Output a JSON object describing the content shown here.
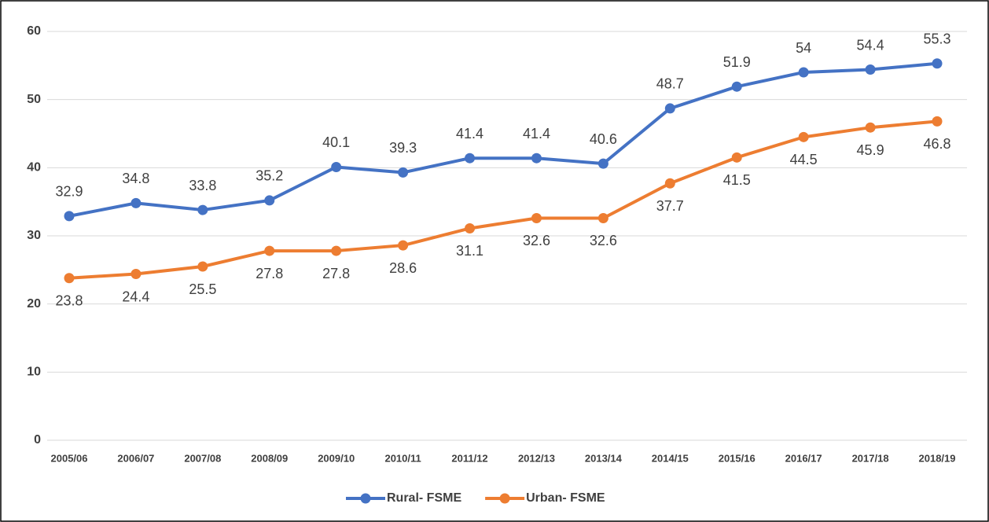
{
  "chart_data": {
    "type": "line",
    "categories": [
      "2005/06",
      "2006/07",
      "2007/08",
      "2008/09",
      "2009/10",
      "2010/11",
      "2011/12",
      "2012/13",
      "2013/14",
      "2014/15",
      "2015/16",
      "2016/17",
      "2017/18",
      "2018/19"
    ],
    "series": [
      {
        "name": "Rural- FSME",
        "color": "#4472c4",
        "values": [
          32.9,
          34.8,
          33.8,
          35.2,
          40.1,
          39.3,
          41.4,
          41.4,
          40.6,
          48.7,
          51.9,
          54,
          54.4,
          55.3
        ]
      },
      {
        "name": "Urban- FSME",
        "color": "#ed7d31",
        "values": [
          23.8,
          24.4,
          25.5,
          27.8,
          27.8,
          28.6,
          31.1,
          32.6,
          32.6,
          37.7,
          41.5,
          44.5,
          45.9,
          46.8
        ]
      }
    ],
    "ylim": [
      0,
      60
    ],
    "yticks": [
      0,
      10,
      20,
      30,
      40,
      50,
      60
    ],
    "grid": true,
    "legend": "bottom"
  }
}
